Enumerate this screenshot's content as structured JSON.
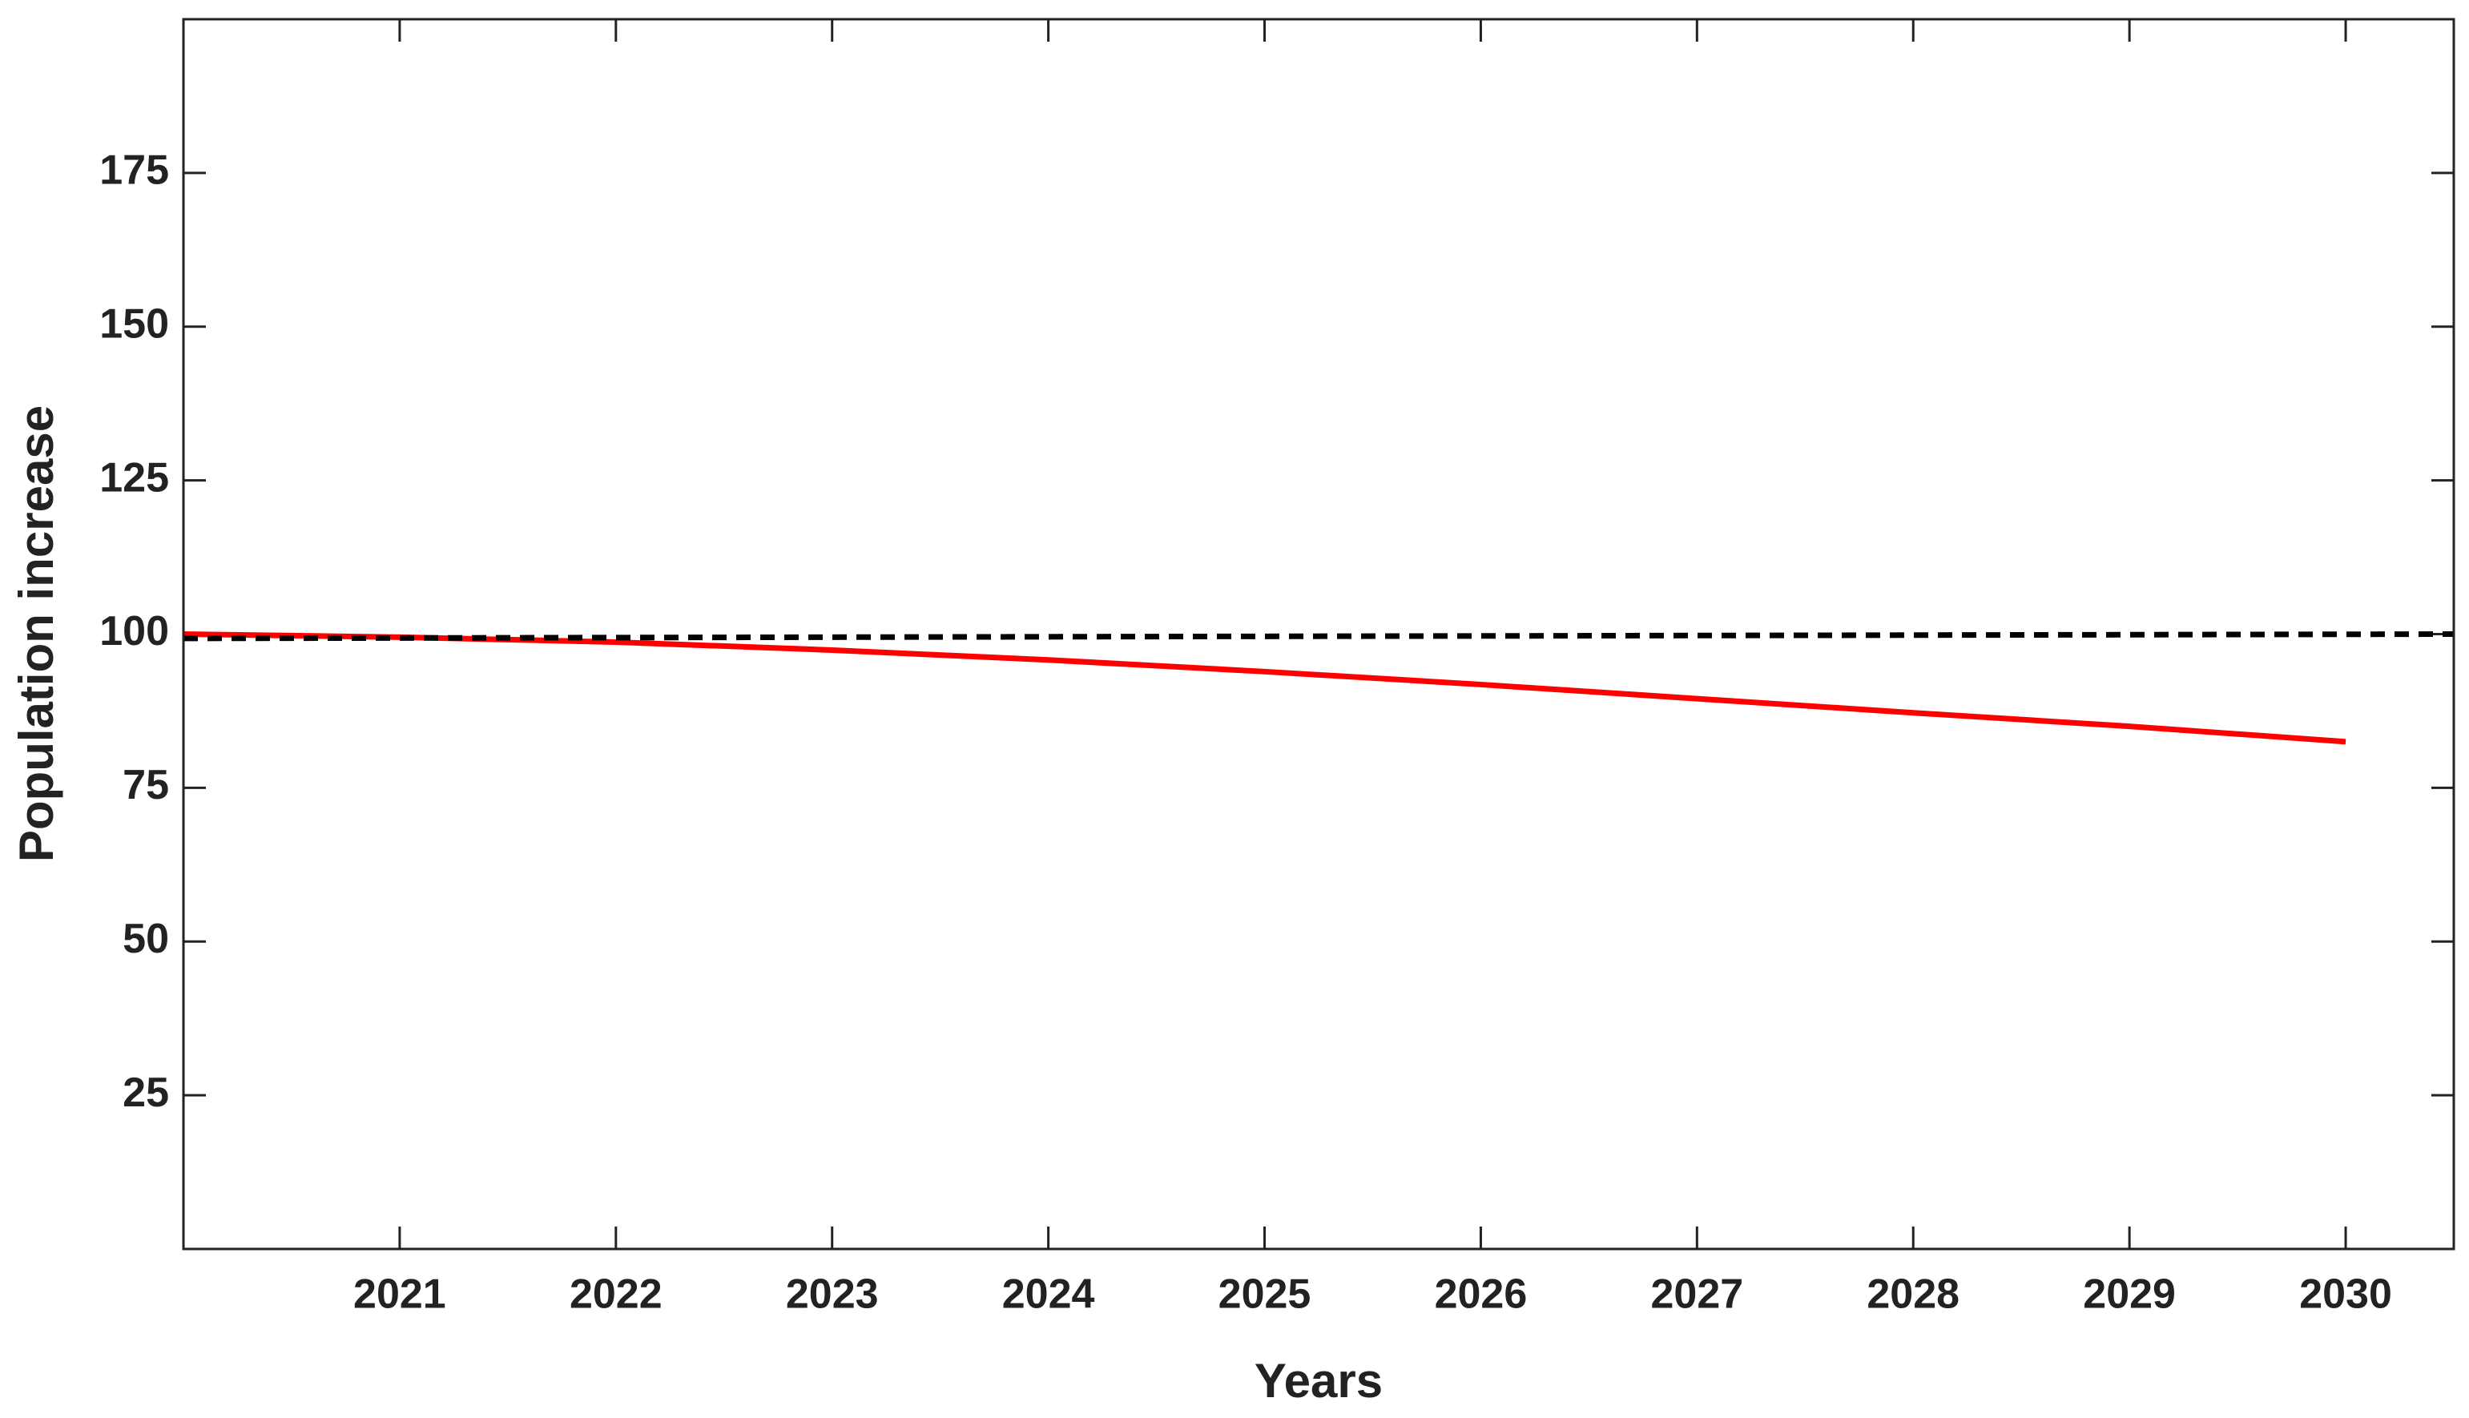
{
  "chart_data": {
    "type": "line",
    "xlabel": "Years",
    "ylabel": "Population increase",
    "series": [
      {
        "color": "#ff0000",
        "dash": false,
        "x": [
          2020,
          2021,
          2022,
          2023,
          2024,
          2025,
          2026,
          2027,
          2028,
          2029,
          2030
        ],
        "values": [
          100,
          99.5,
          98.7,
          97.4,
          95.8,
          93.9,
          91.8,
          89.5,
          87.2,
          85,
          82.5
        ]
      },
      {
        "color": "#000000",
        "dash": true,
        "x": [
          2020,
          2030.5
        ],
        "values": [
          99.3,
          100
        ]
      }
    ],
    "xlim": [
      2020,
      2030.5
    ],
    "xticks": [
      2021,
      2022,
      2023,
      2024,
      2025,
      2026,
      2027,
      2028,
      2029,
      2030
    ],
    "ylim": [
      0,
      200
    ],
    "yticks": [
      25,
      50,
      75,
      100,
      125,
      150,
      175
    ],
    "grid": false
  }
}
